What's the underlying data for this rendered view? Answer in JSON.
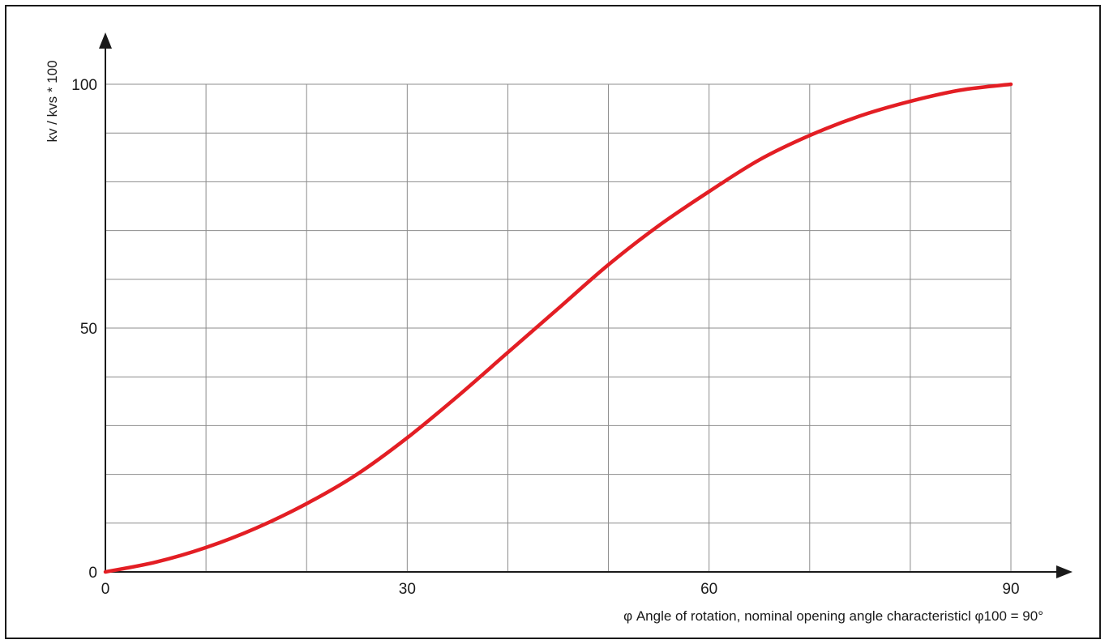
{
  "chart_data": {
    "type": "line",
    "title": "",
    "xlabel": "φ Angle of rotation, nominal opening angle characteristicl φ100 = 90°",
    "ylabel": "kv / kvs * 100",
    "xlim": [
      0,
      90
    ],
    "ylim": [
      0,
      100
    ],
    "x_ticks": [
      0,
      30,
      60,
      90
    ],
    "y_ticks": [
      0,
      50,
      100
    ],
    "x_tick_labels": [
      "0",
      "30",
      "60",
      "90"
    ],
    "y_tick_labels": [
      "0",
      "50",
      "100"
    ],
    "grid": true,
    "x_grid_step": 10,
    "y_grid_step": 10,
    "series": [
      {
        "color": "#e31e24",
        "x": [
          0,
          5,
          10,
          15,
          20,
          25,
          30,
          35,
          40,
          45,
          50,
          55,
          60,
          65,
          70,
          75,
          80,
          85,
          90
        ],
        "y": [
          0,
          2,
          5,
          9,
          14,
          20,
          27.5,
          36,
          45,
          54,
          63,
          71,
          78,
          84.5,
          89.5,
          93.5,
          96.5,
          98.8,
          100
        ]
      }
    ]
  }
}
